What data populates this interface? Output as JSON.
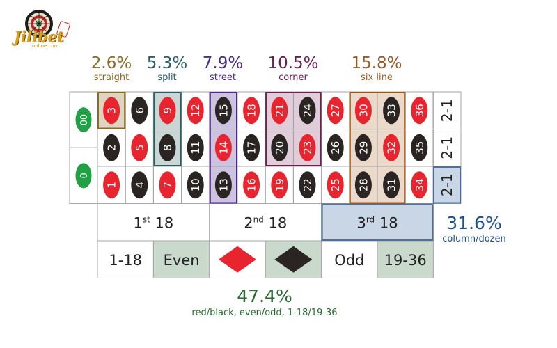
{
  "logo": {
    "text": "Jilibet",
    "subtext": "online.com"
  },
  "colors": {
    "red": "#e8252f",
    "black": "#2a2523",
    "green": "#22a045",
    "grid": "#a6a6a6"
  },
  "payouts": [
    {
      "value": "2.6%",
      "label": "straight",
      "color": "#8a6a24"
    },
    {
      "value": "5.3%",
      "label": "split",
      "color": "#2a5f68"
    },
    {
      "value": "7.9%",
      "label": "street",
      "color": "#4a2a8a"
    },
    {
      "value": "10.5%",
      "label": "corner",
      "color": "#6b2050"
    },
    {
      "value": "15.8%",
      "label": "six line",
      "color": "#9a5a25"
    },
    {
      "value": "31.6%",
      "label": "column/dozen",
      "color": "#1f4e8a"
    },
    {
      "value": "47.4%",
      "label": "red/black, even/odd, 1-18/19-36",
      "color": "#2b6a34"
    }
  ],
  "zeros": [
    "00",
    "0"
  ],
  "numbers": [
    {
      "n": "3",
      "color": "red"
    },
    {
      "n": "6",
      "color": "black"
    },
    {
      "n": "9",
      "color": "red"
    },
    {
      "n": "12",
      "color": "red"
    },
    {
      "n": "15",
      "color": "black"
    },
    {
      "n": "18",
      "color": "red"
    },
    {
      "n": "21",
      "color": "red"
    },
    {
      "n": "24",
      "color": "black"
    },
    {
      "n": "27",
      "color": "red"
    },
    {
      "n": "30",
      "color": "red"
    },
    {
      "n": "33",
      "color": "black"
    },
    {
      "n": "36",
      "color": "red"
    },
    {
      "n": "2",
      "color": "black"
    },
    {
      "n": "5",
      "color": "red"
    },
    {
      "n": "8",
      "color": "black"
    },
    {
      "n": "11",
      "color": "black"
    },
    {
      "n": "14",
      "color": "red"
    },
    {
      "n": "17",
      "color": "black"
    },
    {
      "n": "20",
      "color": "black"
    },
    {
      "n": "23",
      "color": "red"
    },
    {
      "n": "26",
      "color": "black"
    },
    {
      "n": "29",
      "color": "black"
    },
    {
      "n": "32",
      "color": "red"
    },
    {
      "n": "35",
      "color": "black"
    },
    {
      "n": "1",
      "color": "red"
    },
    {
      "n": "4",
      "color": "black"
    },
    {
      "n": "7",
      "color": "red"
    },
    {
      "n": "10",
      "color": "black"
    },
    {
      "n": "13",
      "color": "black"
    },
    {
      "n": "16",
      "color": "red"
    },
    {
      "n": "19",
      "color": "red"
    },
    {
      "n": "22",
      "color": "black"
    },
    {
      "n": "25",
      "color": "red"
    },
    {
      "n": "28",
      "color": "black"
    },
    {
      "n": "31",
      "color": "black"
    },
    {
      "n": "34",
      "color": "red"
    }
  ],
  "columns": [
    "2-1",
    "2-1",
    "2-1"
  ],
  "dozens": [
    {
      "num": "1",
      "sup": "st",
      "suffix": " 18"
    },
    {
      "num": "2",
      "sup": "nd",
      "suffix": " 18"
    },
    {
      "num": "3",
      "sup": "rd",
      "suffix": " 18"
    }
  ],
  "outside": [
    "1-18",
    "Even",
    "red",
    "black",
    "Odd",
    "19-36"
  ]
}
